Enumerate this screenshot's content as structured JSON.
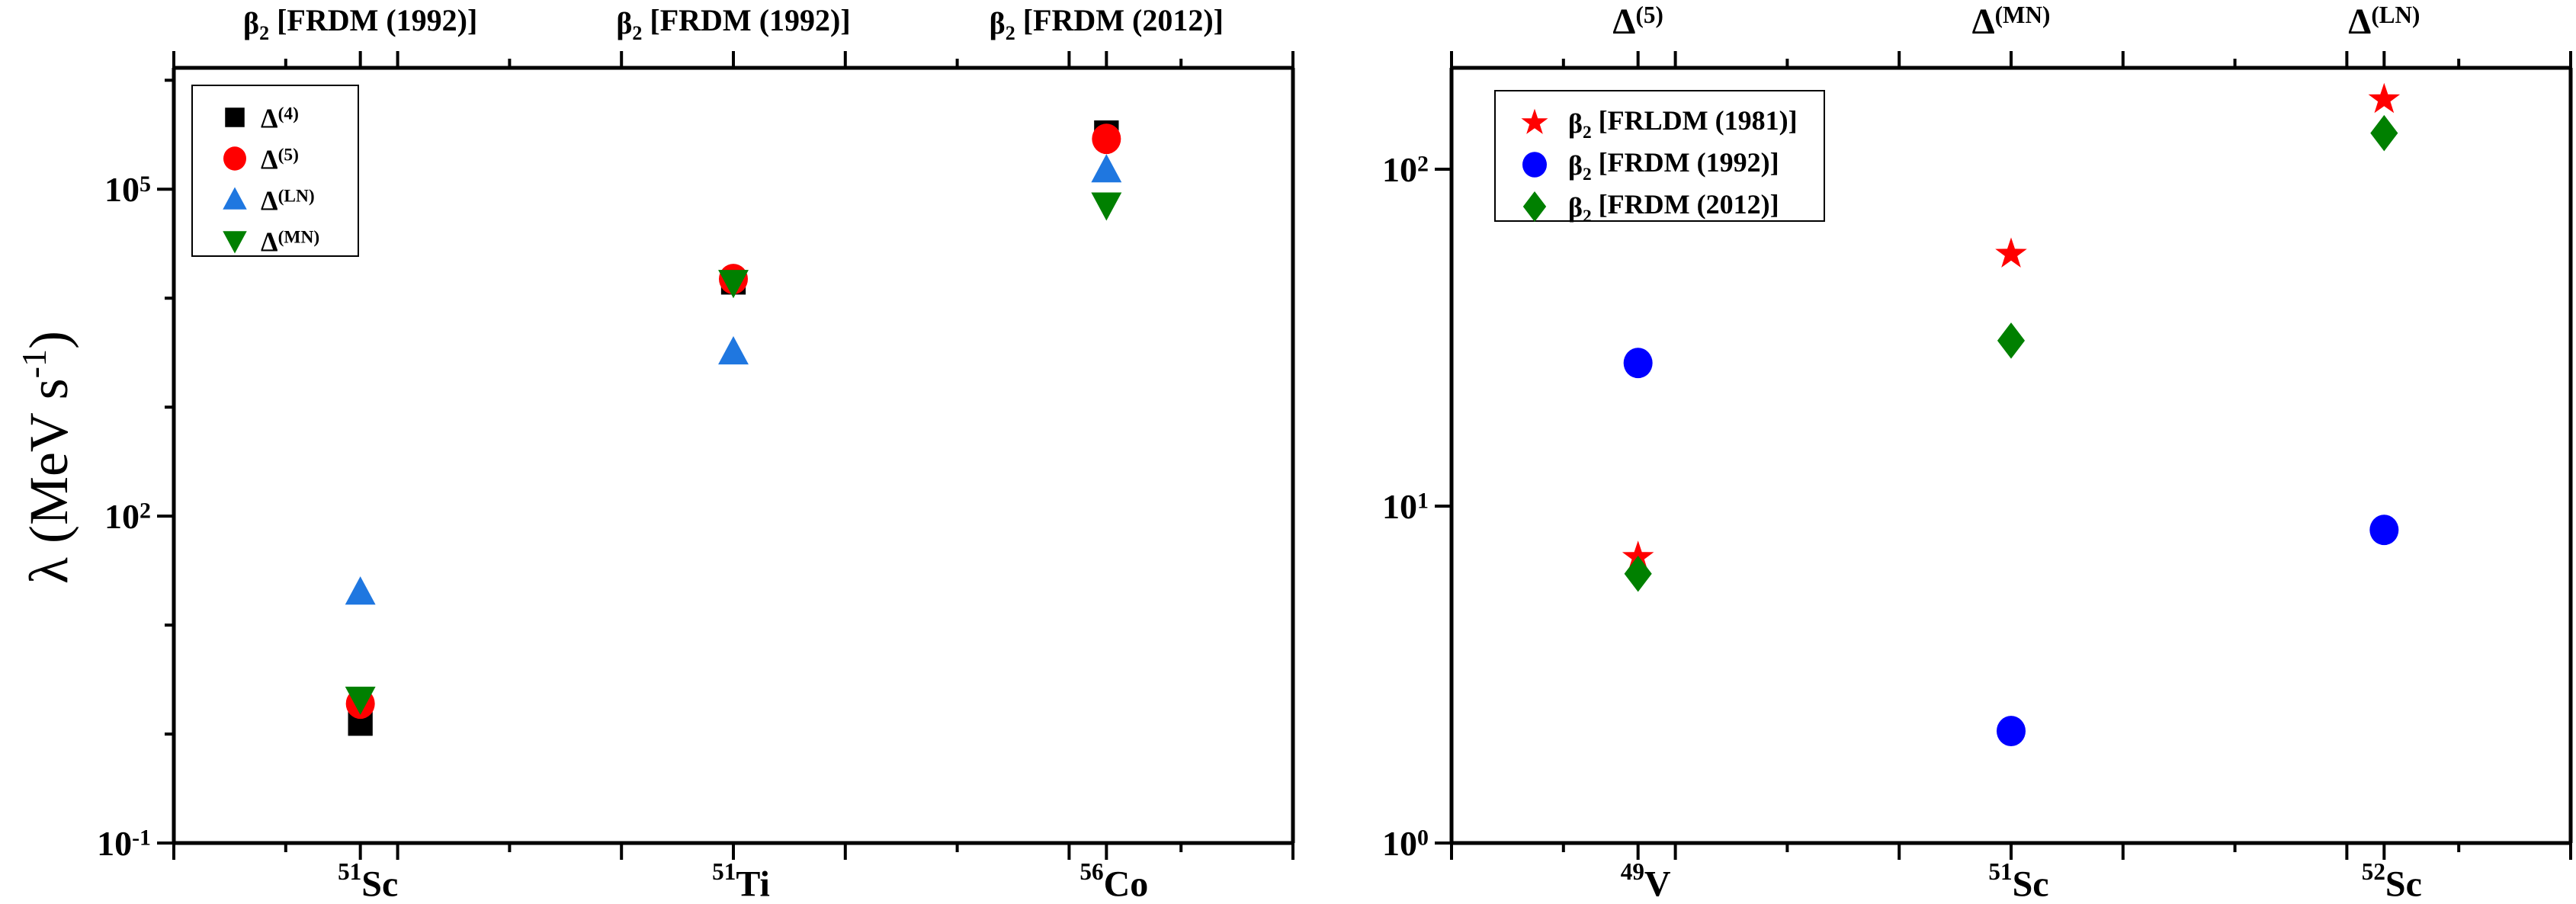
{
  "chart_data": [
    {
      "type": "scatter",
      "ylabel": "λ (MeV s-1)",
      "yscale": "log",
      "ylim": [
        0.1,
        1300000
      ],
      "yticks": [
        {
          "value": 0.1,
          "base": "10",
          "exp": "-1"
        },
        {
          "value": 100,
          "base": "10",
          "exp": "2"
        },
        {
          "value": 100000,
          "base": "10",
          "exp": "5"
        }
      ],
      "categories": [
        {
          "mass": "51",
          "symbol": "Sc"
        },
        {
          "mass": "51",
          "symbol": "Ti"
        },
        {
          "mass": "56",
          "symbol": "Co"
        }
      ],
      "top_labels": [
        {
          "main": "β",
          "sub": "2",
          "rest": " [FRDM (1992)]"
        },
        {
          "main": "β",
          "sub": "2",
          "rest": " [FRDM (1992)]"
        },
        {
          "main": "β",
          "sub": "2",
          "rest": " [FRDM (2012)]"
        }
      ],
      "legend_position": "top-left",
      "grid": false,
      "series": [
        {
          "name": "Δ",
          "sup": "(4)",
          "marker": "square",
          "color": "#000000",
          "values": [
            1.25,
            14000,
            330000
          ]
        },
        {
          "name": "Δ",
          "sup": "(5)",
          "marker": "circle",
          "color": "#ff0000",
          "values": [
            1.9,
            15000,
            290000
          ]
        },
        {
          "name": "Δ",
          "sup": "(LN)",
          "marker": "triangle-up",
          "color": "#1f77e0",
          "values": [
            20,
            3200,
            150000
          ]
        },
        {
          "name": "Δ",
          "sup": "(MN)",
          "marker": "triangle-down",
          "color": "#008000",
          "values": [
            2.1,
            14000,
            72000
          ]
        }
      ]
    },
    {
      "type": "scatter",
      "yscale": "log",
      "ylim": [
        1,
        200
      ],
      "yticks": [
        {
          "value": 1,
          "base": "10",
          "exp": "0"
        },
        {
          "value": 10,
          "base": "10",
          "exp": "1"
        },
        {
          "value": 100,
          "base": "10",
          "exp": "2"
        }
      ],
      "categories": [
        {
          "mass": "49",
          "symbol": "V"
        },
        {
          "mass": "51",
          "symbol": "Sc"
        },
        {
          "mass": "52",
          "symbol": "Sc"
        }
      ],
      "top_labels": [
        {
          "main": "Δ",
          "sup": "(5)"
        },
        {
          "main": "Δ",
          "sup": "(MN)"
        },
        {
          "main": "Δ",
          "sup": "(LN)"
        }
      ],
      "legend_position": "top-left",
      "grid": false,
      "series": [
        {
          "name": "β",
          "sub": "2",
          "rest": " [FRLDM (1981)]",
          "marker": "star",
          "color": "#ff0000",
          "values": [
            7.05,
            56,
            161
          ]
        },
        {
          "name": "β",
          "sub": "2",
          "rest": " [FRDM (1992)]",
          "marker": "circle",
          "color": "#0000ff",
          "values": [
            26.6,
            2.15,
            8.5
          ]
        },
        {
          "name": "β",
          "sub": "2",
          "rest": " [FRDM (2012)]",
          "marker": "diamond",
          "color": "#008000",
          "values": [
            6.3,
            31,
            128
          ]
        }
      ]
    }
  ]
}
